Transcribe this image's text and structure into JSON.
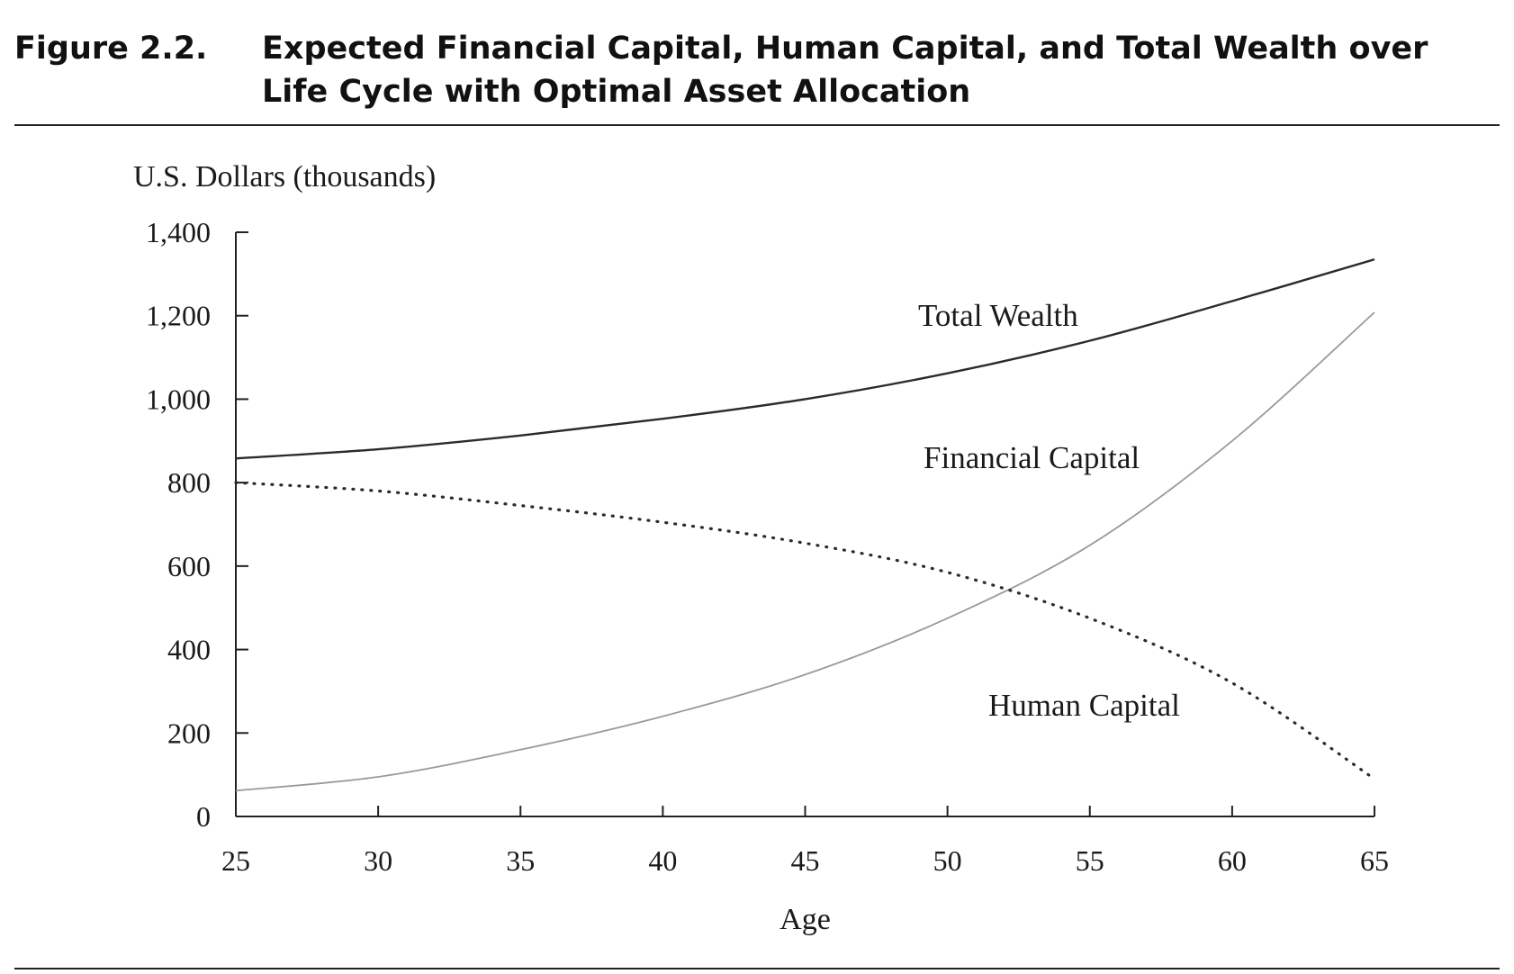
{
  "figure": {
    "label": "Figure  2.2.",
    "title": "Expected Financial Capital, Human Capital, and Total Wealth over Life Cycle with Optimal Asset Allocation"
  },
  "chart_data": {
    "type": "line",
    "title": "Expected Financial Capital, Human Capital, and Total Wealth over Life Cycle with Optimal Asset Allocation",
    "xlabel": "Age",
    "ylabel": "U.S. Dollars (thousands)",
    "xlim": [
      25,
      65
    ],
    "ylim": [
      0,
      1400
    ],
    "x_ticks": [
      25,
      30,
      35,
      40,
      45,
      50,
      55,
      60,
      65
    ],
    "x_tick_labels": [
      "25",
      "30",
      "35",
      "40",
      "45",
      "50",
      "55",
      "60",
      "65"
    ],
    "y_ticks": [
      0,
      200,
      400,
      600,
      800,
      1000,
      1200,
      1400
    ],
    "y_tick_labels": [
      "0",
      "200",
      "400",
      "600",
      "800",
      "1,000",
      "1,200",
      "1,400"
    ],
    "grid": false,
    "legend": "none",
    "x": [
      25,
      30,
      35,
      40,
      45,
      50,
      55,
      60,
      65
    ],
    "series": [
      {
        "name": "Total Wealth",
        "values": [
          858,
          880,
          913,
          953,
          1000,
          1062,
          1140,
          1235,
          1335
        ],
        "color": "#2b2b2b",
        "style": "solid"
      },
      {
        "name": "Financial Capital",
        "values": [
          62,
          95,
          160,
          240,
          340,
          475,
          650,
          900,
          1208
        ],
        "color": "#9a9a9a",
        "style": "solid"
      },
      {
        "name": "Human Capital",
        "values": [
          800,
          780,
          745,
          705,
          655,
          585,
          475,
          320,
          90
        ],
        "color": "#2b2b2b",
        "style": "dotted"
      }
    ]
  }
}
